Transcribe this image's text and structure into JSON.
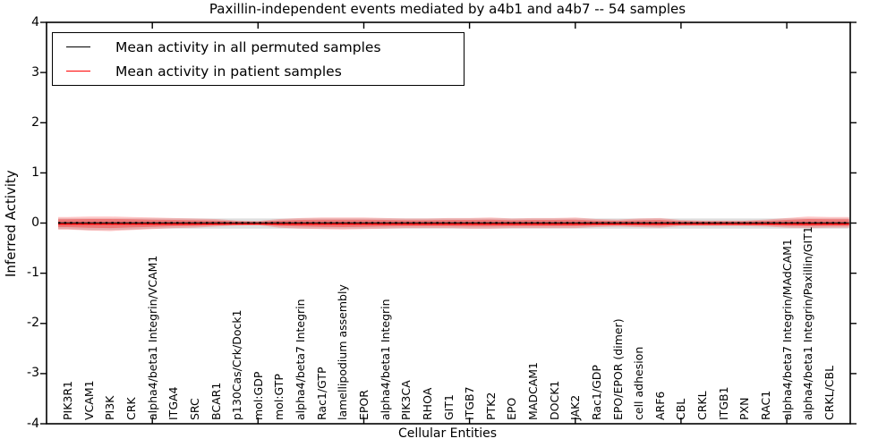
{
  "title": "Paxillin-independent events mediated by a4b1 and a4b7 -- 54 samples",
  "axes": {
    "ylabel": "Inferred Activity",
    "xlabel": "Cellular Entities",
    "y_tick_labels": [
      "4",
      "3",
      "2",
      "1",
      "0",
      "-1",
      "-2",
      "-3",
      "-4"
    ],
    "y_tick_values": [
      4,
      3,
      2,
      1,
      0,
      -1,
      -2,
      -3,
      -4
    ]
  },
  "legend": {
    "items": [
      {
        "label": "Mean activity in all permuted samples",
        "color": "#000000"
      },
      {
        "label": "Mean activity in patient samples",
        "color": "#ff0000"
      }
    ]
  },
  "chart_data": {
    "type": "line",
    "title": "Paxillin-independent events mediated by a4b1 and a4b7 -- 54 samples",
    "xlabel": "Cellular Entities",
    "ylabel": "Inferred Activity",
    "ylim": [
      -4,
      4
    ],
    "xlim": [
      0,
      38
    ],
    "x_major_ticks": [
      5,
      10,
      15,
      20,
      25,
      30,
      35
    ],
    "legend_position": "upper left",
    "grid": false,
    "categories": [
      "PIK3R1",
      "VCAM1",
      "PI3K",
      "CRK",
      "alpha4/beta1 Integrin/VCAM1",
      "ITGA4",
      "SRC",
      "BCAR1",
      "p130Cas/Crk/Dock1",
      "mol:GDP",
      "mol:GTP",
      "alpha4/beta7 Integrin",
      "Rac1/GTP",
      "lamellipodium assembly",
      "EPOR",
      "alpha4/beta1 Integrin",
      "PIK3CA",
      "RHOA",
      "GIT1",
      "ITGB7",
      "PTK2",
      "EPO",
      "MADCAM1",
      "DOCK1",
      "JAK2",
      "Rac1/GDP",
      "EPO/EPOR (dimer)",
      "cell adhesion",
      "ARF6",
      "CBL",
      "CRKL",
      "ITGB1",
      "PXN",
      "RAC1",
      "alpha4/beta7 Integrin/MAdCAM1",
      "alpha4/beta1 Integrin/Paxillin/GIT1",
      "CRKL/CBL"
    ],
    "series": [
      {
        "name": "Mean activity in all permuted samples",
        "color": "#000000",
        "style": "dashed",
        "values": [
          0,
          0,
          0,
          0,
          0,
          0,
          0,
          0,
          0,
          0,
          0,
          0,
          0,
          0,
          0,
          0,
          0,
          0,
          0,
          0,
          0,
          0,
          0,
          0,
          0,
          0,
          0,
          0,
          0,
          0,
          0,
          0,
          0,
          0,
          0,
          0,
          0
        ]
      },
      {
        "name": "Mean activity in patient samples",
        "color": "#ff0000",
        "style": "solid",
        "values": [
          -0.01,
          -0.01,
          -0.01,
          -0.01,
          -0.01,
          -0.01,
          -0.01,
          -0.01,
          -0.01,
          -0.01,
          -0.01,
          -0.01,
          -0.01,
          -0.01,
          -0.01,
          -0.01,
          -0.01,
          -0.01,
          -0.01,
          -0.01,
          -0.01,
          -0.01,
          -0.01,
          -0.01,
          -0.01,
          -0.01,
          -0.01,
          -0.01,
          -0.01,
          -0.01,
          -0.01,
          -0.01,
          -0.01,
          -0.01,
          -0.01,
          -0.01,
          -0.01
        ]
      }
    ],
    "bands": {
      "permuted_band": {
        "color": "#000000",
        "opacity": 0.13,
        "upper": [
          0.09,
          0.09,
          0.09,
          0.09,
          0.09,
          0.09,
          0.09,
          0.09,
          0.09,
          0.09,
          0.09,
          0.09,
          0.09,
          0.09,
          0.09,
          0.09,
          0.09,
          0.09,
          0.09,
          0.09,
          0.09,
          0.09,
          0.09,
          0.09,
          0.09,
          0.09,
          0.09,
          0.09,
          0.09,
          0.09,
          0.09,
          0.09,
          0.09,
          0.09,
          0.09,
          0.09,
          0.09
        ],
        "lower": [
          -0.12,
          -0.14,
          -0.14,
          -0.13,
          -0.11,
          -0.11,
          -0.11,
          -0.11,
          -0.11,
          -0.11,
          -0.11,
          -0.11,
          -0.11,
          -0.11,
          -0.11,
          -0.11,
          -0.11,
          -0.11,
          -0.11,
          -0.11,
          -0.11,
          -0.11,
          -0.11,
          -0.11,
          -0.11,
          -0.11,
          -0.11,
          -0.11,
          -0.11,
          -0.11,
          -0.11,
          -0.11,
          -0.11,
          -0.11,
          -0.11,
          -0.11,
          -0.11
        ]
      },
      "patient_band": {
        "color": "#ff0000",
        "opacity": 0.22,
        "upper": [
          0.12,
          0.13,
          0.13,
          0.12,
          0.11,
          0.1,
          0.09,
          0.08,
          0.05,
          0.04,
          0.08,
          0.1,
          0.11,
          0.11,
          0.11,
          0.1,
          0.09,
          0.09,
          0.1,
          0.1,
          0.11,
          0.09,
          0.1,
          0.1,
          0.11,
          0.08,
          0.07,
          0.09,
          0.1,
          0.06,
          0.05,
          0.05,
          0.05,
          0.07,
          0.1,
          0.13,
          0.12
        ],
        "lower": [
          -0.13,
          -0.15,
          -0.16,
          -0.14,
          -0.12,
          -0.1,
          -0.09,
          -0.07,
          -0.05,
          -0.04,
          -0.09,
          -0.11,
          -0.12,
          -0.13,
          -0.12,
          -0.11,
          -0.1,
          -0.1,
          -0.1,
          -0.11,
          -0.11,
          -0.1,
          -0.1,
          -0.1,
          -0.1,
          -0.08,
          -0.07,
          -0.08,
          -0.09,
          -0.06,
          -0.06,
          -0.06,
          -0.06,
          -0.07,
          -0.09,
          -0.1,
          -0.09
        ]
      }
    }
  }
}
